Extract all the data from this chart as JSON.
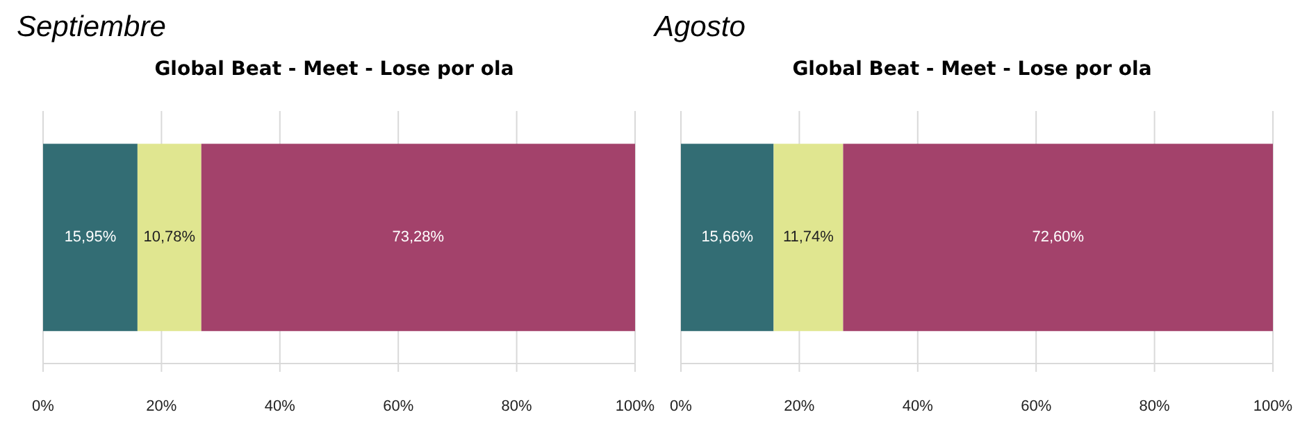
{
  "chart_data": [
    {
      "type": "bar",
      "title": "Septiembre",
      "subtitle": "Global Beat - Meet - Lose por ola",
      "orientation": "horizontal",
      "stacked": true,
      "categories": [
        null
      ],
      "series": [
        {
          "color": "#336d74",
          "values": [
            15.95
          ],
          "value_labels": [
            "15,95%"
          ]
        },
        {
          "color": "#e0e690",
          "values": [
            10.78
          ],
          "value_labels": [
            "10,78%"
          ]
        },
        {
          "color": "#a3426b",
          "values": [
            73.28
          ],
          "value_labels": [
            "73,28%"
          ]
        }
      ],
      "xlim": [
        0,
        100
      ],
      "xticks": [
        {
          "value": 0,
          "label": "0%"
        },
        {
          "value": 20,
          "label": "20%"
        },
        {
          "value": 40,
          "label": "40%"
        },
        {
          "value": 60,
          "label": "60%"
        },
        {
          "value": 80,
          "label": "80%"
        },
        {
          "value": 100,
          "label": "100%"
        }
      ],
      "grid": "x",
      "legend": false
    },
    {
      "type": "bar",
      "title": "Agosto",
      "subtitle": "Global Beat - Meet - Lose por ola",
      "orientation": "horizontal",
      "stacked": true,
      "categories": [
        null
      ],
      "series": [
        {
          "color": "#336d74",
          "values": [
            15.66
          ],
          "value_labels": [
            "15,66%"
          ]
        },
        {
          "color": "#e0e690",
          "values": [
            11.74
          ],
          "value_labels": [
            "11,74%"
          ]
        },
        {
          "color": "#a3426b",
          "values": [
            72.6
          ],
          "value_labels": [
            "72,60%"
          ]
        }
      ],
      "xlim": [
        0,
        100
      ],
      "xticks": [
        {
          "value": 0,
          "label": "0%"
        },
        {
          "value": 20,
          "label": "20%"
        },
        {
          "value": 40,
          "label": "40%"
        },
        {
          "value": 60,
          "label": "60%"
        },
        {
          "value": 80,
          "label": "80%"
        },
        {
          "value": 100,
          "label": "100%"
        }
      ],
      "grid": "x",
      "legend": false
    }
  ]
}
